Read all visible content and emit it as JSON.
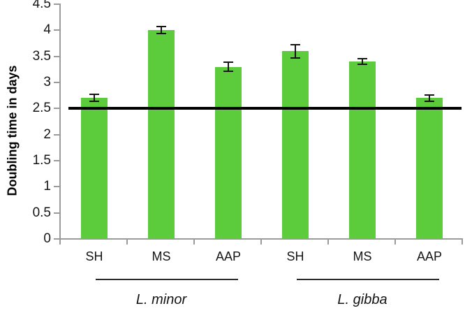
{
  "chart_data": {
    "type": "bar",
    "title": "",
    "xlabel": "",
    "ylabel": "Doubling time in days",
    "ylim": [
      0,
      4.5
    ],
    "ytick_step": 0.5,
    "grid": false,
    "legend": "none",
    "categories": [
      "SH",
      "MS",
      "AAP",
      "SH",
      "MS",
      "AAP"
    ],
    "series": [
      {
        "name": "Doubling time in days",
        "values": [
          2.7,
          4.0,
          3.3,
          3.6,
          3.4,
          2.7
        ],
        "errors": [
          0.08,
          0.08,
          0.1,
          0.14,
          0.07,
          0.07
        ]
      }
    ],
    "group_labels": [
      {
        "label": "L. minor",
        "from_index": 0,
        "to_index": 2
      },
      {
        "label": "L. gibba",
        "from_index": 3,
        "to_index": 5
      }
    ],
    "reference_line_y": 2.5,
    "colors": {
      "bar": "#5dcc3c",
      "axis": "#9b9b9b",
      "error_bar": "#141414",
      "reference_line": "#000000",
      "group_line": "#2b2b2b",
      "text": "#151515"
    }
  }
}
